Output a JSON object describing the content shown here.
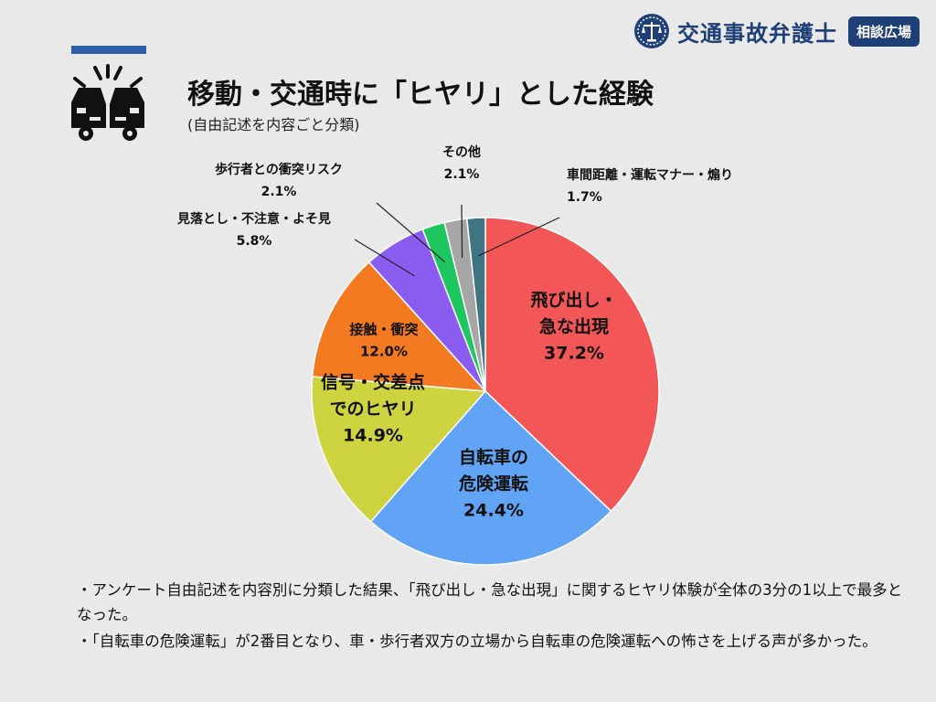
{
  "brand": {
    "name": "交通事故弁護士",
    "badge": "相談広場",
    "color": "#1f3f77"
  },
  "header": {
    "title": "移動・交通時に「ヒヤリ」とした経験",
    "subtitle": "(自由記述を内容ごと分類)",
    "icon": "car-crash-icon",
    "accent_color": "#2f5ea8"
  },
  "chart_data": {
    "type": "pie",
    "start": "12 o'clock",
    "direction": "clockwise",
    "slices": [
      {
        "label": "飛び出し・急な出現",
        "lines": [
          "飛び出し・",
          "急な出現"
        ],
        "value": 37.2,
        "value_text": "37.2%",
        "color": "#f25656",
        "label_placement": "inside"
      },
      {
        "label": "自転車の危険運転",
        "lines": [
          "自転車の",
          "危険運転"
        ],
        "value": 24.4,
        "value_text": "24.4%",
        "color": "#61a4f5",
        "label_placement": "inside"
      },
      {
        "label": "信号・交差点でのヒヤリ",
        "lines": [
          "信号・交差点",
          "でのヒヤリ"
        ],
        "value": 14.9,
        "value_text": "14.9%",
        "color": "#cdd440",
        "label_placement": "inside"
      },
      {
        "label": "接触・衝突",
        "lines": [
          "接触・衝突"
        ],
        "value": 12.0,
        "value_text": "12.0%",
        "color": "#f47a22",
        "label_placement": "inside"
      },
      {
        "label": "見落とし・不注意・よそ見",
        "lines": [
          "見落とし・不注意・よそ見"
        ],
        "value": 5.8,
        "value_text": "5.8%",
        "color": "#8a5cf0",
        "label_placement": "outside"
      },
      {
        "label": "歩行者との衝突リスク",
        "lines": [
          "歩行者との衝突リスク"
        ],
        "value": 2.1,
        "value_text": "2.1%",
        "color": "#1ec660",
        "label_placement": "outside"
      },
      {
        "label": "その他",
        "lines": [
          "その他"
        ],
        "value": 2.1,
        "value_text": "2.1%",
        "color": "#a6a6a6",
        "label_placement": "outside"
      },
      {
        "label": "車間距離・運転マナー・煽り",
        "lines": [
          "車間距離・運転マナー・煽り"
        ],
        "value": 1.7,
        "value_text": "1.7%",
        "color": "#3f7483",
        "label_placement": "outside"
      }
    ]
  },
  "notes": [
    "・アンケート自由記述を内容別に分類した結果、「飛び出し・急な出現」に関するヒヤリ体験が全体の3分の1以上で最多となった。",
    "・「自転車の危険運転」が2番目となり、車・歩行者双方の立場から自転車の危険運転への怖さを上げる声が多かった。"
  ]
}
